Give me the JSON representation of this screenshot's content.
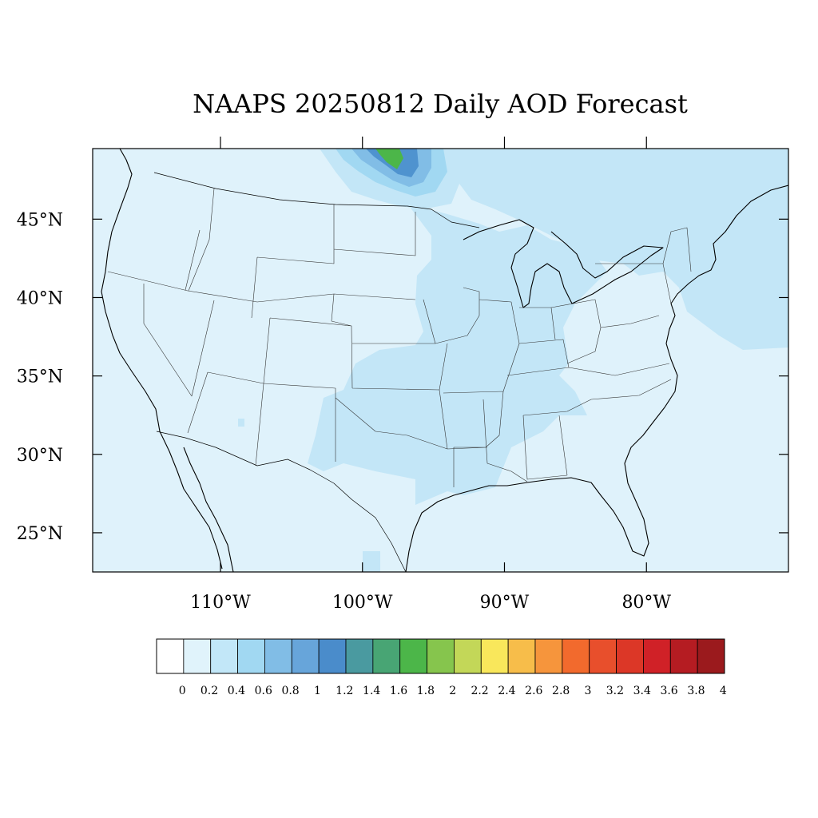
{
  "title": "NAAPS 20250812 Daily AOD Forecast",
  "map": {
    "lon_range": [
      -119,
      -70
    ],
    "lat_range": [
      22.5,
      49.5
    ],
    "projection": "cylindrical-equidistant",
    "lat_labels": [
      "25°N",
      "30°N",
      "35°N",
      "40°N",
      "45°N"
    ],
    "lat_values": [
      25,
      30,
      35,
      40,
      45
    ],
    "lon_labels": [
      "110°W",
      "100°W",
      "90°W",
      "80°W"
    ],
    "lon_values": [
      -110,
      -100,
      -90,
      -80
    ],
    "background_color": "#dff2fb",
    "aod_regions": [
      {
        "name": "canada-smoke-plume",
        "level": "high",
        "color": "#4f93cf"
      },
      {
        "name": "plume-core",
        "level": "max",
        "color": "#4caf50"
      },
      {
        "name": "great-plains-band",
        "level": "elevated",
        "color": "#c3e6f7"
      },
      {
        "name": "east-coast-atlantic",
        "level": "elevated",
        "color": "#c3e6f7"
      }
    ]
  },
  "colorbar": {
    "labels": [
      "0",
      "0.2",
      "0.4",
      "0.6",
      "0.8",
      "1",
      "1.2",
      "1.4",
      "1.6",
      "1.8",
      "2",
      "2.2",
      "2.4",
      "2.6",
      "2.8",
      "3",
      "3.2",
      "3.4",
      "3.6",
      "3.8",
      "4"
    ],
    "colors": [
      "#ffffff",
      "#e0f3fb",
      "#c2e7f8",
      "#a1d8f2",
      "#81bde6",
      "#67a5da",
      "#4a8ccb",
      "#4a9aa0",
      "#48a574",
      "#4cb649",
      "#86c54d",
      "#c3d758",
      "#f9e75b",
      "#f7bd4a",
      "#f6953c",
      "#f26a2d",
      "#e84f2c",
      "#dc3727",
      "#d02127",
      "#b51c22",
      "#9b1a1d"
    ]
  }
}
